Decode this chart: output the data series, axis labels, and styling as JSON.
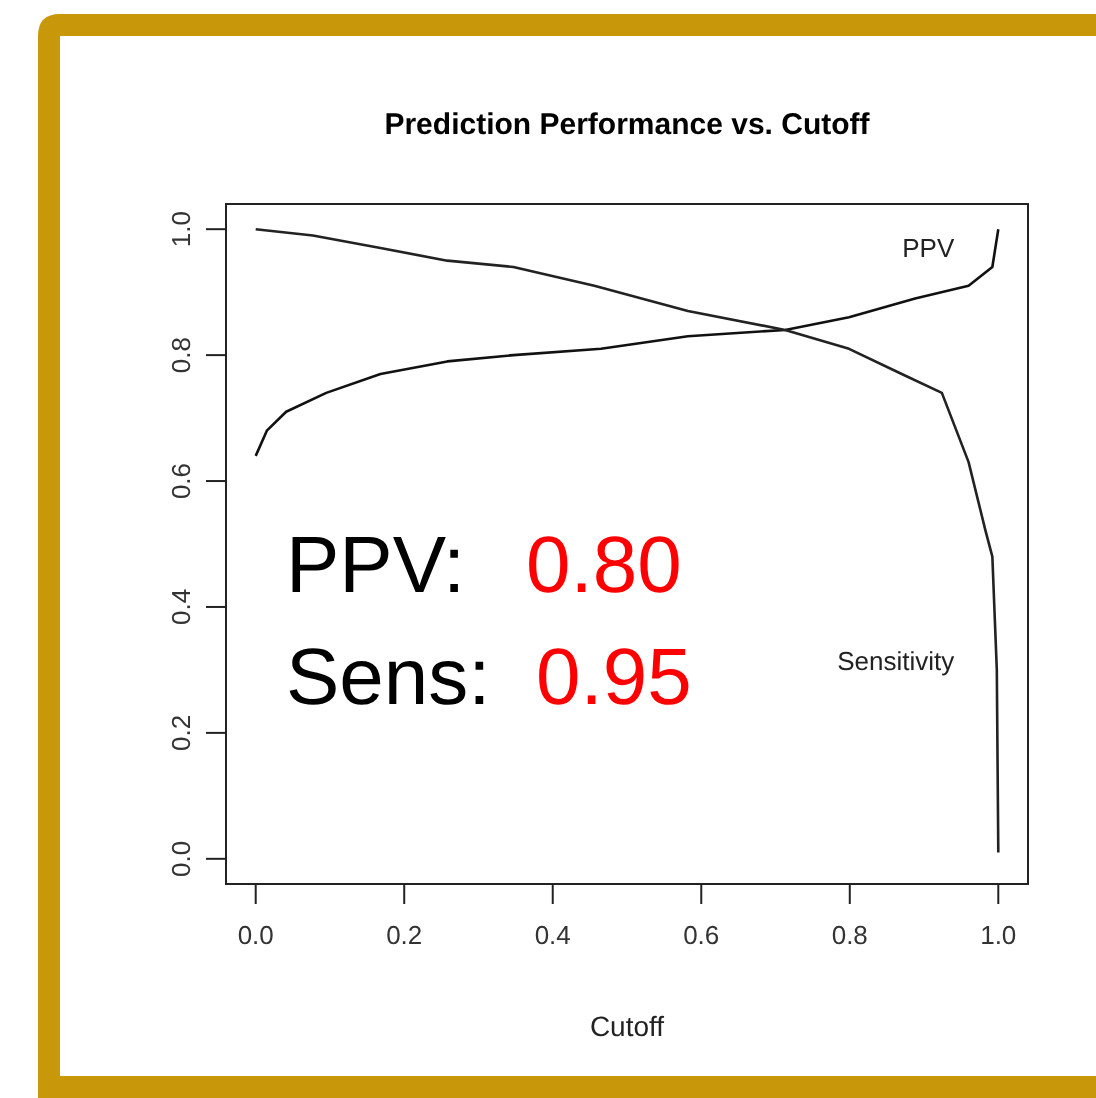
{
  "chart_data": {
    "type": "line",
    "title": "Prediction Performance vs. Cutoff",
    "xlabel": "Cutoff",
    "xlim": [
      -0.04,
      1.04
    ],
    "ylim": [
      -0.04,
      1.04
    ],
    "xticks": [
      {
        "value": 0,
        "label": "0.0"
      },
      0.2,
      0.4,
      0.6,
      0.8,
      {
        "value": 1,
        "label": "1.0"
      }
    ],
    "yticks": [
      {
        "value": 0,
        "label": "0.0"
      },
      0.2,
      0.4,
      0.6,
      0.8,
      {
        "value": 1,
        "label": "1.0"
      }
    ],
    "grid": false,
    "marker": "none",
    "line_style": "solid",
    "series": [
      {
        "name": "PPV",
        "color": "#111111",
        "x": [
          0,
          0.015,
          0.041,
          0.095,
          0.168,
          0.258,
          0.347,
          0.465,
          0.582,
          0.713,
          0.799,
          0.888,
          0.96,
          0.992,
          1.0
        ],
        "values": [
          0.64,
          0.68,
          0.71,
          0.74,
          0.77,
          0.79,
          0.8,
          0.81,
          0.83,
          0.84,
          0.86,
          0.89,
          0.91,
          0.94,
          1.0
        ]
      },
      {
        "name": "Sensitivity",
        "color": "#222222",
        "x": [
          0,
          0.077,
          0.168,
          0.258,
          0.347,
          0.456,
          0.582,
          0.713,
          0.799,
          0.87,
          0.924,
          0.96,
          0.983,
          0.992,
          0.998,
          1.0
        ],
        "values": [
          1.0,
          0.99,
          0.97,
          0.95,
          0.94,
          0.91,
          0.87,
          0.84,
          0.81,
          0.77,
          0.74,
          0.63,
          0.52,
          0.48,
          0.3,
          0.01
        ]
      }
    ],
    "annotations": [
      "PPV:",
      "0.80",
      "Sens:",
      "0.95"
    ]
  }
}
